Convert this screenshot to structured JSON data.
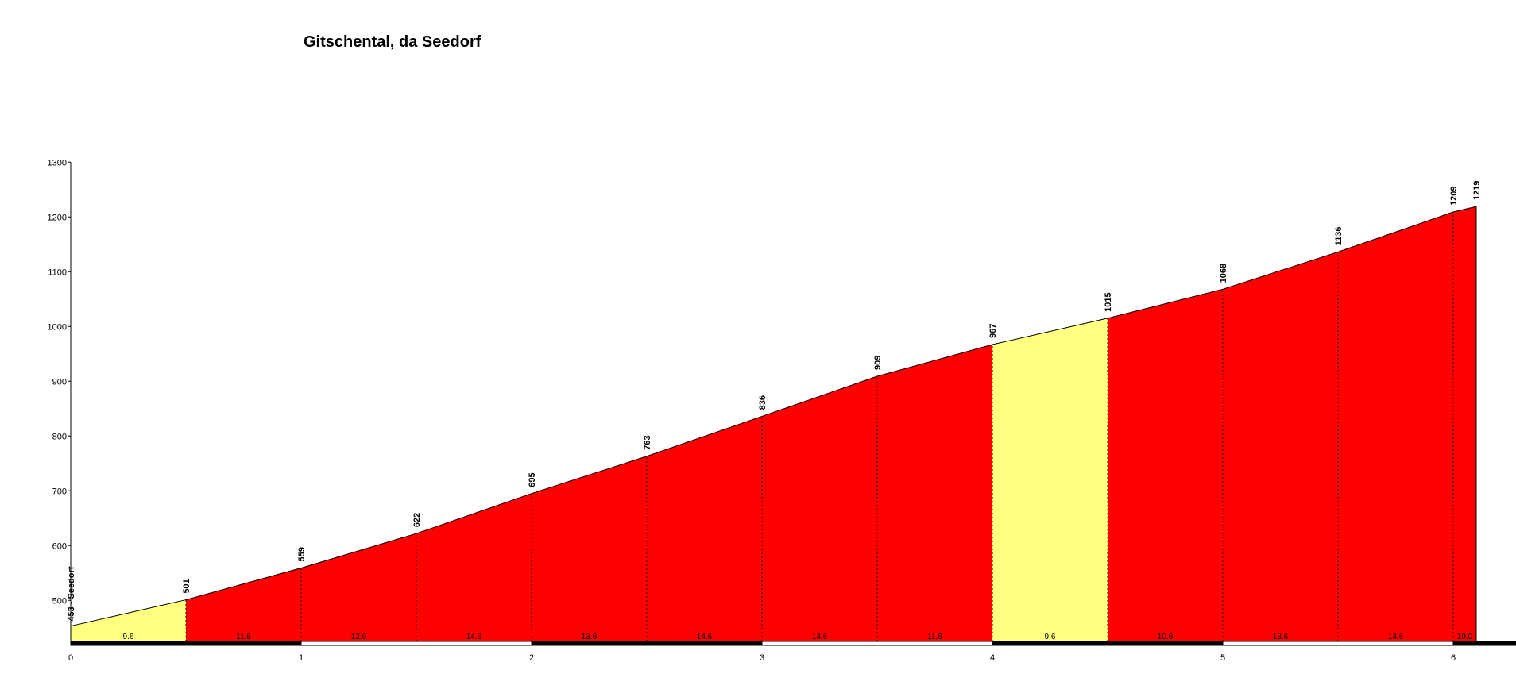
{
  "chart_data": {
    "type": "area",
    "title": "Gitschental, da Seedorf",
    "xlabel": "",
    "ylabel": "",
    "xlim": [
      0,
      6.25
    ],
    "ylim": [
      425,
      1300
    ],
    "x_ticks": [
      "0",
      "1",
      "2",
      "3",
      "4",
      "5",
      "6"
    ],
    "y_ticks": [
      "1300",
      "1200",
      "1100",
      "1000",
      "900",
      "800",
      "700",
      "600",
      "500"
    ],
    "colors": {
      "steep": "#ff0000",
      "moderate": "#ffff80",
      "axis": "#000000"
    },
    "start_label": "453 - Seedorf",
    "points": [
      {
        "x": 0,
        "y": 453,
        "label": ""
      },
      {
        "x": 0.5,
        "y": 501,
        "label": "501"
      },
      {
        "x": 1.0,
        "y": 559,
        "label": "559"
      },
      {
        "x": 1.5,
        "y": 622,
        "label": "622"
      },
      {
        "x": 2.0,
        "y": 695,
        "label": "695"
      },
      {
        "x": 2.5,
        "y": 763,
        "label": "763"
      },
      {
        "x": 3.0,
        "y": 836,
        "label": "836"
      },
      {
        "x": 3.5,
        "y": 909,
        "label": "909"
      },
      {
        "x": 4.0,
        "y": 967,
        "label": "967"
      },
      {
        "x": 4.5,
        "y": 1015,
        "label": "1015"
      },
      {
        "x": 5.0,
        "y": 1068,
        "label": "1068"
      },
      {
        "x": 5.5,
        "y": 1136,
        "label": "1136"
      },
      {
        "x": 6.0,
        "y": 1209,
        "label": "1209"
      },
      {
        "x": 6.1,
        "y": 1219,
        "label": "1219"
      }
    ],
    "segments": [
      {
        "from": 0,
        "to": 0.5,
        "gradient": "9.6",
        "color": "moderate"
      },
      {
        "from": 0.5,
        "to": 1.0,
        "gradient": "11.6",
        "color": "steep"
      },
      {
        "from": 1.0,
        "to": 1.5,
        "gradient": "12.6",
        "color": "steep"
      },
      {
        "from": 1.5,
        "to": 2.0,
        "gradient": "14.6",
        "color": "steep"
      },
      {
        "from": 2.0,
        "to": 2.5,
        "gradient": "13.6",
        "color": "steep"
      },
      {
        "from": 2.5,
        "to": 3.0,
        "gradient": "14.6",
        "color": "steep"
      },
      {
        "from": 3.0,
        "to": 3.5,
        "gradient": "14.6",
        "color": "steep"
      },
      {
        "from": 3.5,
        "to": 4.0,
        "gradient": "11.6",
        "color": "steep"
      },
      {
        "from": 4.0,
        "to": 4.5,
        "gradient": "9.6",
        "color": "moderate"
      },
      {
        "from": 4.5,
        "to": 5.0,
        "gradient": "10.6",
        "color": "steep"
      },
      {
        "from": 5.0,
        "to": 5.5,
        "gradient": "13.6",
        "color": "steep"
      },
      {
        "from": 5.5,
        "to": 6.0,
        "gradient": "14.6",
        "color": "steep"
      },
      {
        "from": 6.0,
        "to": 6.1,
        "gradient": "10.0",
        "color": "steep"
      }
    ]
  }
}
